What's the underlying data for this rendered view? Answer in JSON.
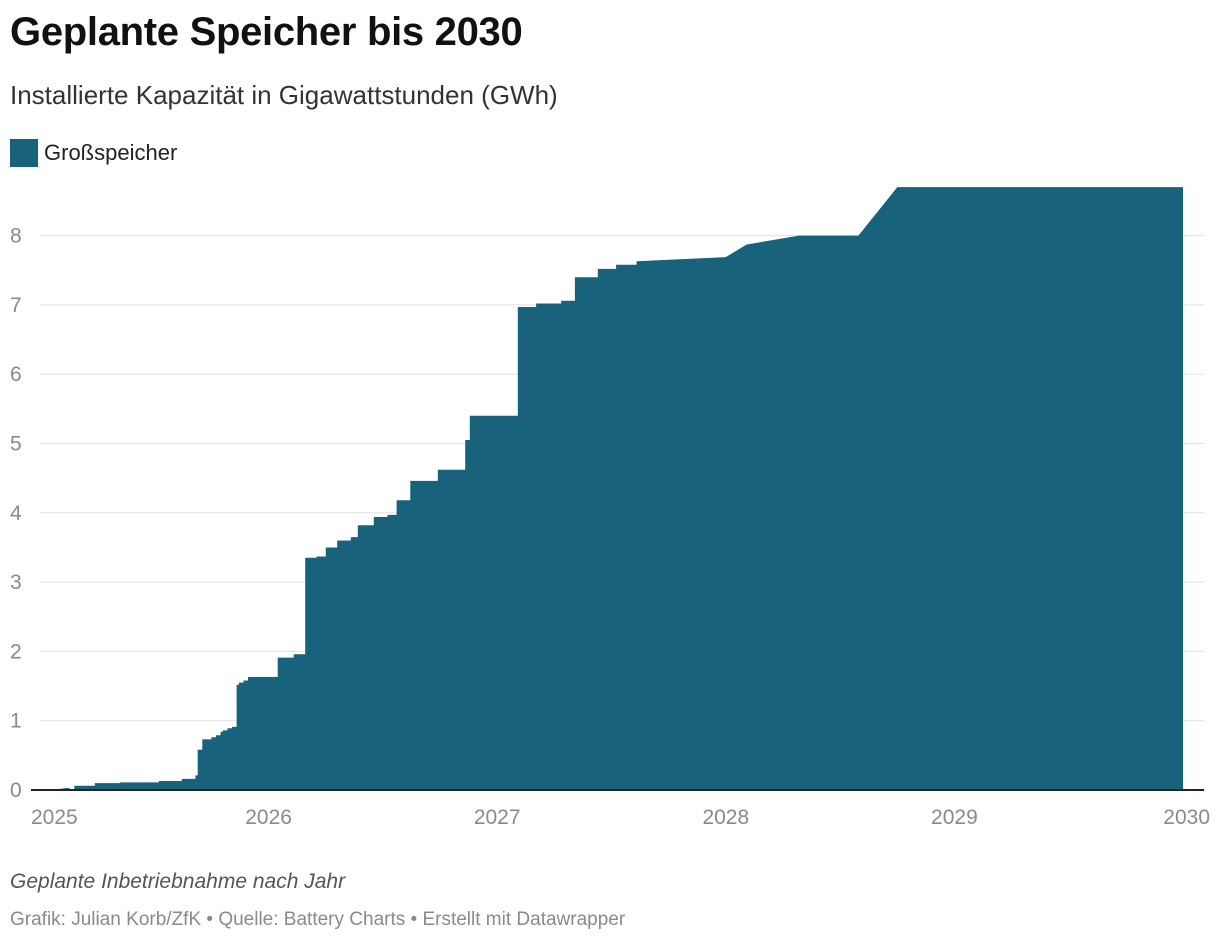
{
  "chart_data": {
    "type": "area",
    "title": "Geplante Speicher bis 2030",
    "subtitle": "Installierte Kapazität in Gigawattstunden (GWh)",
    "legend": [
      "Großspeicher"
    ],
    "xlabel": "",
    "ylabel": "",
    "x_ticks": [
      "2025",
      "2026",
      "2027",
      "2028",
      "2029",
      "2030"
    ],
    "y_ticks": [
      "0",
      "1",
      "2",
      "3",
      "4",
      "5",
      "6",
      "7",
      "8"
    ],
    "xlim": [
      2025,
      2030
    ],
    "ylim": [
      0,
      8.7
    ],
    "color": "#18627c",
    "series": [
      {
        "name": "Großspeicher",
        "step": true,
        "x": [
          2025.15,
          2025.24,
          2025.35,
          2025.52,
          2025.62,
          2025.68,
          2025.69,
          2025.71,
          2025.75,
          2025.77,
          2025.79,
          2025.8,
          2025.82,
          2025.84,
          2025.86,
          2025.87,
          2025.89,
          2025.91,
          2026.04,
          2026.11,
          2026.16,
          2026.21,
          2026.25,
          2026.3,
          2026.36,
          2026.39,
          2026.46,
          2026.52,
          2026.56,
          2026.62,
          2026.74,
          2026.86,
          2026.88,
          2027.09,
          2027.17,
          2027.28,
          2027.34,
          2027.44,
          2027.52,
          2027.61
        ],
        "y": [
          0.06,
          0.1,
          0.11,
          0.13,
          0.16,
          0.21,
          0.58,
          0.73,
          0.76,
          0.79,
          0.84,
          0.86,
          0.89,
          0.91,
          1.52,
          1.55,
          1.58,
          1.63,
          1.91,
          1.96,
          3.35,
          3.37,
          3.5,
          3.6,
          3.65,
          3.82,
          3.94,
          3.97,
          4.18,
          4.46,
          4.62,
          5.05,
          5.4,
          6.97,
          7.02,
          7.06,
          7.4,
          7.52,
          7.58,
          7.63
        ],
        "ramps": [
          {
            "x": [
              2027.61,
              2028.0
            ],
            "y": [
              7.63,
              7.69
            ]
          },
          {
            "x": [
              2028.0,
              2028.09
            ],
            "y": [
              7.69,
              7.87
            ]
          },
          {
            "x": [
              2028.09,
              2028.32
            ],
            "y": [
              7.87,
              8.0
            ]
          },
          {
            "x": [
              2028.32,
              2028.58
            ],
            "y": [
              8.0,
              8.0
            ]
          },
          {
            "x": [
              2028.58,
              2028.75
            ],
            "y": [
              8.0,
              8.7
            ]
          },
          {
            "x": [
              2028.75,
              2030.0
            ],
            "y": [
              8.7,
              8.7
            ]
          }
        ]
      }
    ]
  },
  "notes": "Geplante Inbetriebnahme nach Jahr",
  "footer": "Grafik: Julian Korb/ZfK • Quelle: Battery Charts • Erstellt mit Datawrapper"
}
